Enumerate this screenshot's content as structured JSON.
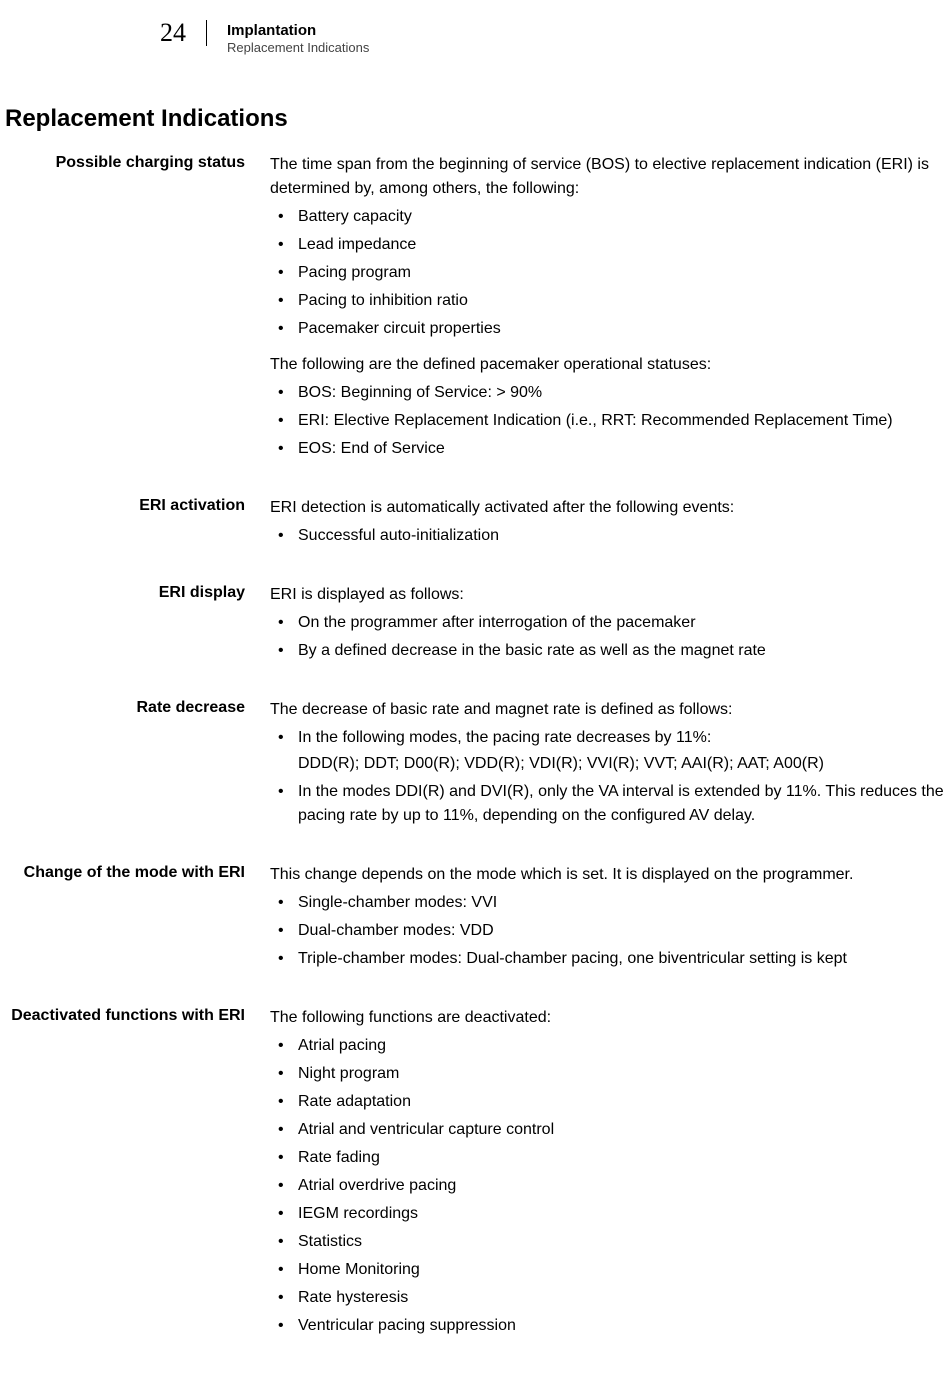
{
  "header": {
    "page_number": "24",
    "title_main": "Implantation",
    "title_sub": "Replacement Indications"
  },
  "section_title": "Replacement Indications",
  "sections": [
    {
      "label": "Possible charging status",
      "blocks": [
        {
          "type": "para",
          "text": "The time span from the beginning of service (BOS) to elective replacement indication (ERI) is determined by, among others, the following:"
        },
        {
          "type": "list",
          "items": [
            "Battery capacity",
            "Lead impedance",
            "Pacing program",
            "Pacing to inhibition ratio",
            "Pacemaker circuit properties"
          ]
        },
        {
          "type": "para",
          "gap": true,
          "text": "The following are the defined pacemaker operational statuses:"
        },
        {
          "type": "list",
          "items": [
            "BOS: Beginning of Service: > 90%",
            "ERI: Elective Replacement Indication (i.e., RRT: Recommended Replacement Time)",
            "EOS: End of Service"
          ]
        }
      ]
    },
    {
      "label": "ERI activation",
      "blocks": [
        {
          "type": "para",
          "text": "ERI detection is automatically activated after the following events:"
        },
        {
          "type": "list",
          "items": [
            "Successful auto-initialization"
          ]
        }
      ]
    },
    {
      "label": "ERI display",
      "blocks": [
        {
          "type": "para",
          "text": "ERI is displayed as follows:"
        },
        {
          "type": "list",
          "items": [
            "On the programmer after interrogation of the pacemaker",
            "By a defined decrease in the basic rate as well as the magnet rate"
          ]
        }
      ]
    },
    {
      "label": "Rate decrease",
      "blocks": [
        {
          "type": "para",
          "text": "The decrease of basic rate and magnet rate is defined as follows:"
        },
        {
          "type": "list_complex",
          "items": [
            {
              "main": "In the following modes, the pacing rate decreases by 11%:",
              "sub": "DDD(R); DDT; D00(R); VDD(R); VDI(R); VVI(R); VVT; AAI(R); AAT; A00(R)"
            },
            {
              "main": "In the modes DDI(R) and DVI(R), only the VA interval is extended by 11%. This reduces the pacing rate by up to 11%, depending on the configured AV delay."
            }
          ]
        }
      ]
    },
    {
      "label": "Change of the mode with ERI",
      "blocks": [
        {
          "type": "para",
          "text": "This change depends on the mode which is set. It is displayed on the programmer."
        },
        {
          "type": "list",
          "items": [
            "Single-chamber modes: VVI",
            "Dual-chamber modes: VDD",
            "Triple-chamber modes: Dual-chamber pacing, one biventricular setting is kept"
          ]
        }
      ]
    },
    {
      "label": "Deactivated functions with ERI",
      "blocks": [
        {
          "type": "para",
          "text": "The following functions are deactivated:"
        },
        {
          "type": "list",
          "items": [
            "Atrial pacing",
            "Night program",
            "Rate adaptation",
            "Atrial and ventricular capture control",
            "Rate fading",
            "Atrial overdrive pacing",
            "IEGM recordings",
            "Statistics",
            "Home Monitoring",
            "Rate hysteresis",
            "Ventricular pacing suppression"
          ]
        }
      ]
    }
  ]
}
